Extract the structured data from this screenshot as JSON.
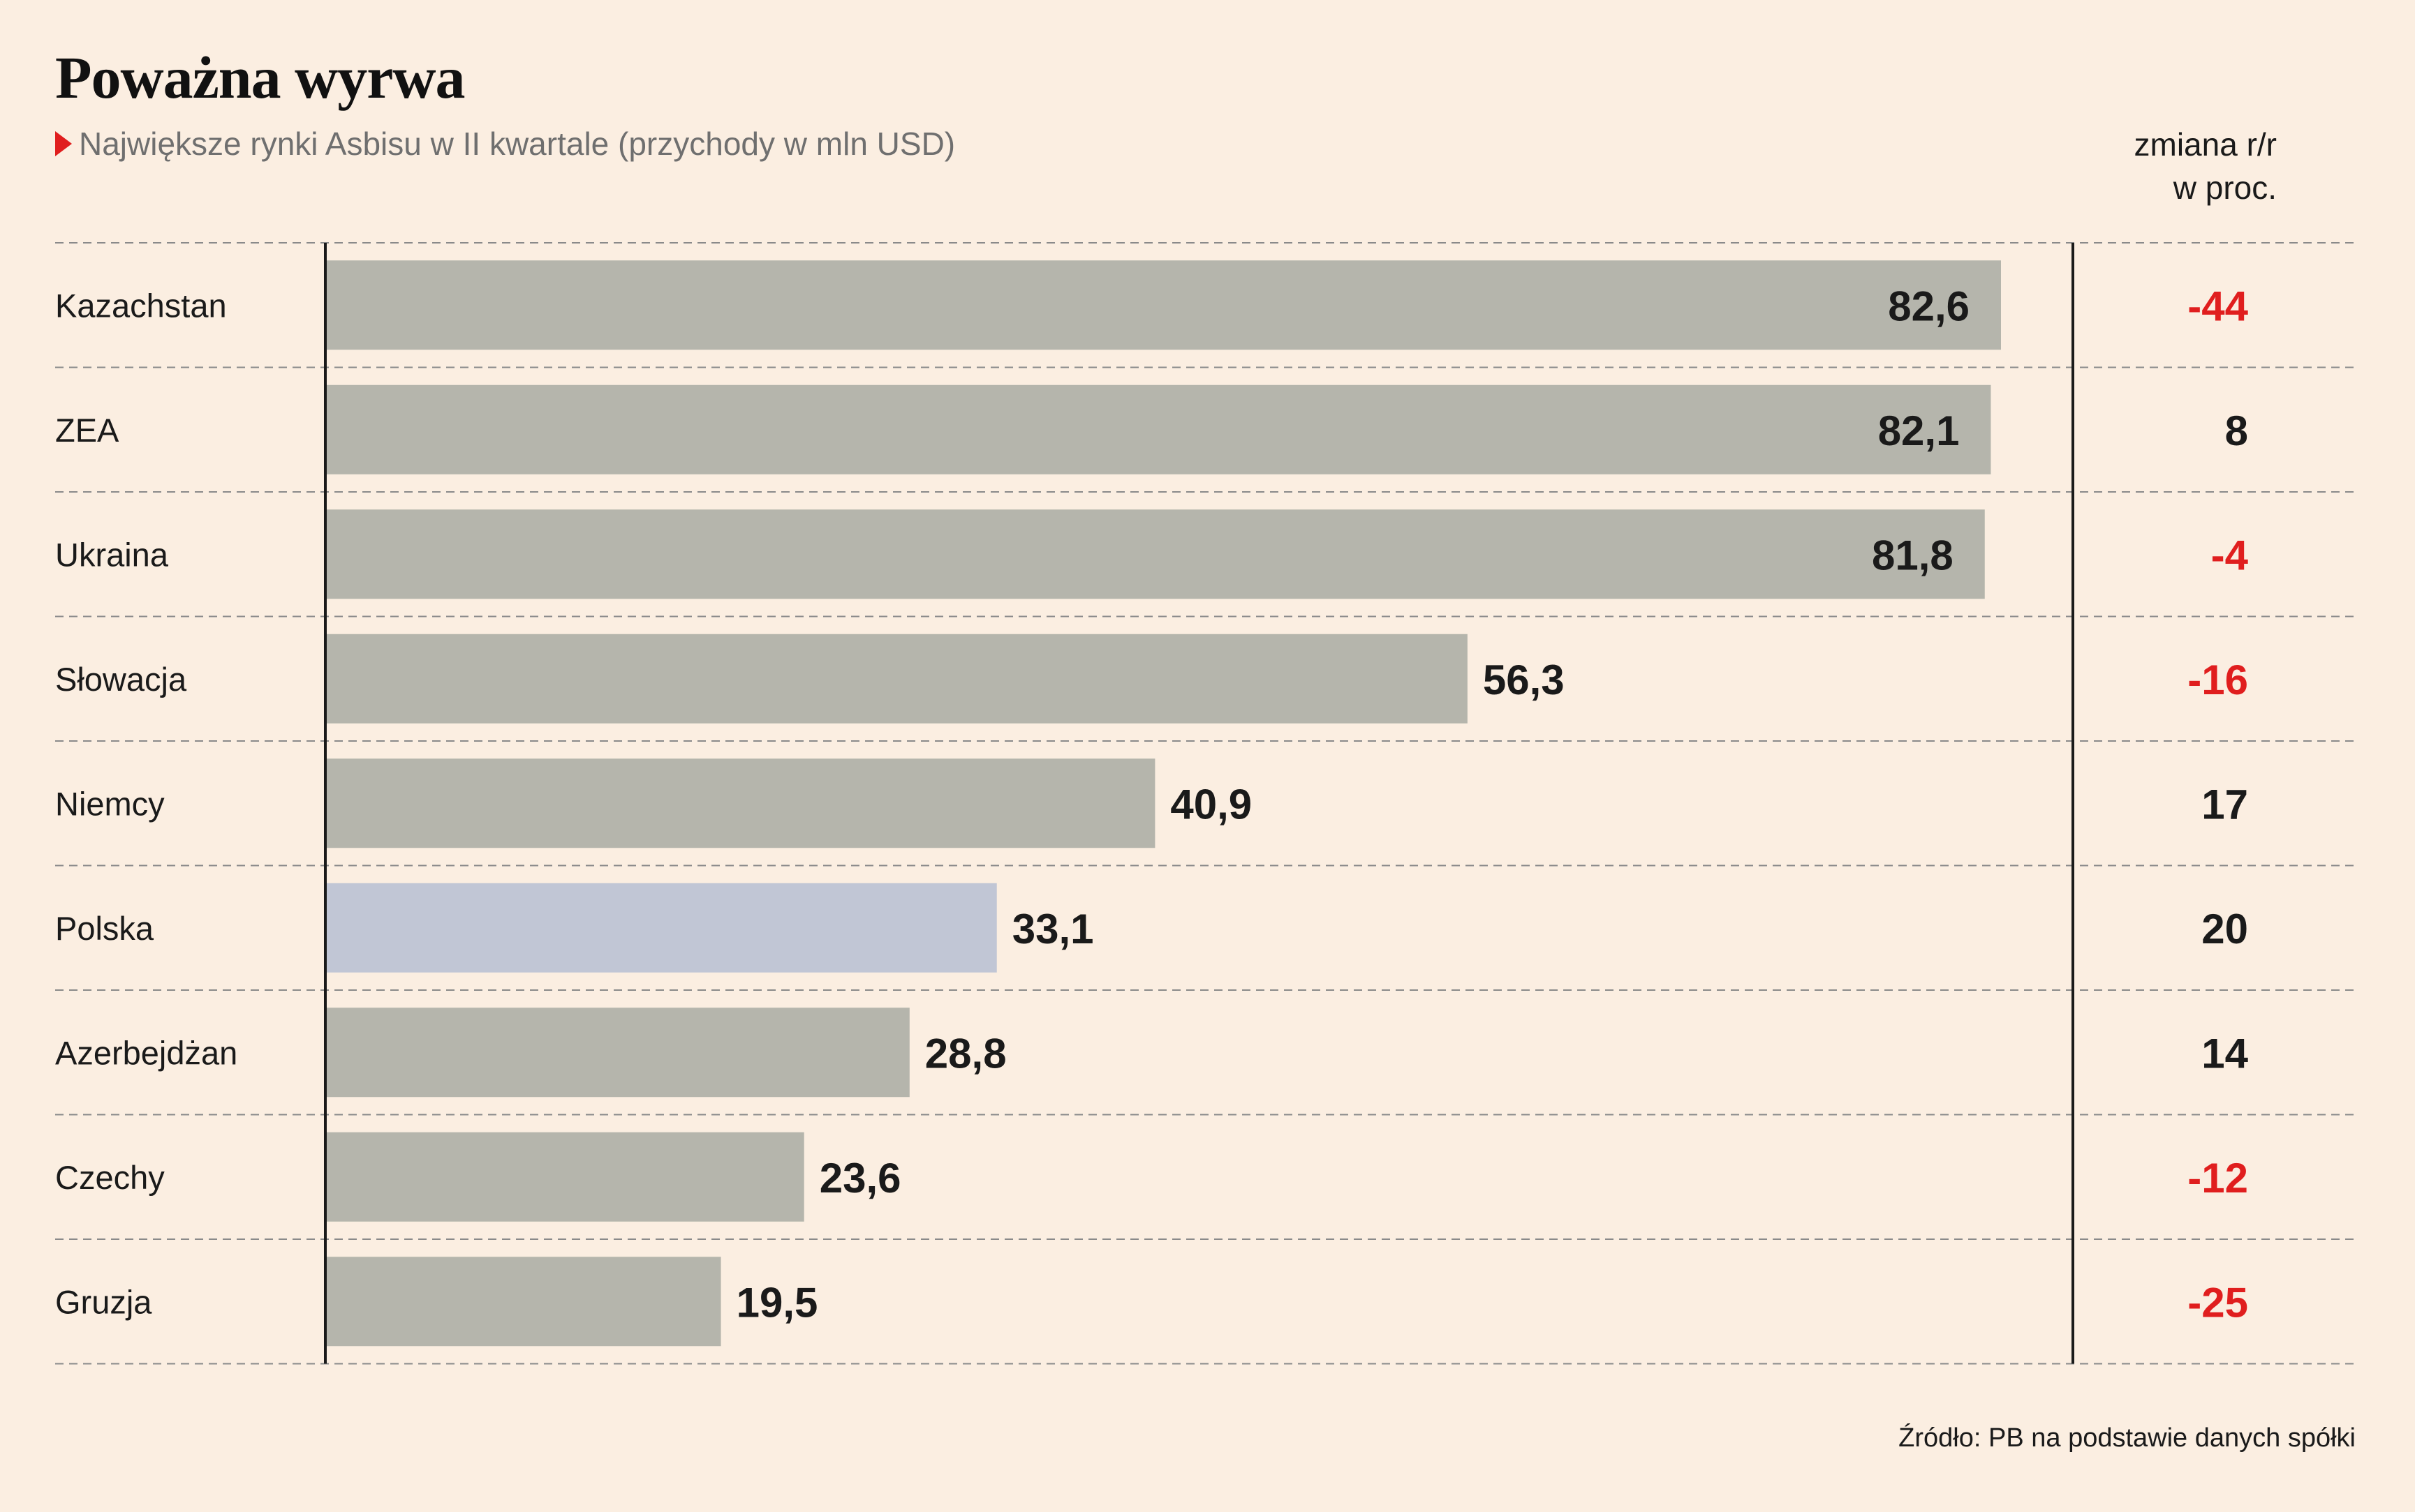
{
  "title": "Poważna wyrwa",
  "subtitle": "Największe rynki Asbisu w II kwartale (przychody w mln USD)",
  "change_header": {
    "line1": "zmiana r/r",
    "line2": "w proc."
  },
  "source": "Źródło: PB na podstawie danych spółki",
  "colors": {
    "background": "#fbeee1",
    "bar": "#b5b5ac",
    "bar_highlight": "#c1c6d5",
    "negative": "#e01e1e",
    "positive": "#1a1a1a",
    "marker": "#e01e1e",
    "gridline": "#8a8a8a"
  },
  "chart_data": {
    "type": "bar",
    "orientation": "horizontal",
    "categories": [
      "Kazachstan",
      "ZEA",
      "Ukraina",
      "Słowacja",
      "Niemcy",
      "Polska",
      "Azerbejdżan",
      "Czechy",
      "Gruzja"
    ],
    "values": [
      82.6,
      82.1,
      81.8,
      56.3,
      40.9,
      33.1,
      28.8,
      23.6,
      19.5
    ],
    "value_labels": [
      "82,6",
      "82,1",
      "81,8",
      "56,3",
      "40,9",
      "33,1",
      "28,8",
      "23,6",
      "19,5"
    ],
    "highlight": [
      "Polska"
    ],
    "change_yoy_pct": [
      -44,
      8,
      -4,
      -16,
      17,
      20,
      14,
      -12,
      -25
    ],
    "change_labels": [
      "-44",
      "8",
      "-4",
      "-16",
      "17",
      "20",
      "14",
      "-12",
      "-25"
    ],
    "xlim": [
      0,
      82.6
    ],
    "grid": false,
    "title": "Poważna wyrwa",
    "subtitle": "Największe rynki Asbisu w II kwartale (przychody w mln USD)"
  }
}
